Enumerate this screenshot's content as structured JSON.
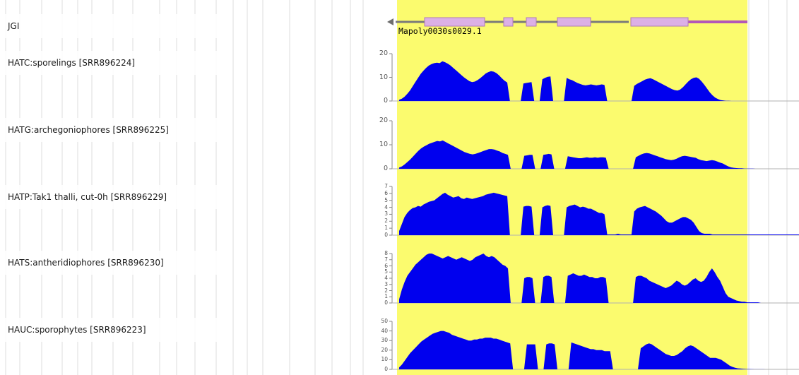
{
  "colors": {
    "highlight": "#fbfb6e",
    "coverage": "#0000ee",
    "exon": "#dcb0e6",
    "exon_border": "#b07ab8",
    "strand_line": "#b357b8",
    "gridline": "#dcdcdc"
  },
  "jgi_track": {
    "label": "JGI",
    "gene": {
      "name": "Mapoly0030s0029.1",
      "strand": "minus",
      "arrow_icon": "left-arrow-icon"
    }
  },
  "tracks": [
    {
      "label": "HATC:sporelings [SRR896224]",
      "ticks": [
        "20",
        "10",
        "0"
      ],
      "max": 20,
      "coverage": [
        0.5,
        1.0,
        1.8,
        3.0,
        4.4,
        6.2,
        8.0,
        9.8,
        11.5,
        12.8,
        14.0,
        15.0,
        15.6,
        16.0,
        16.2,
        16.0,
        16.8,
        16.4,
        15.8,
        15.0,
        14.0,
        13.0,
        12.0,
        11.0,
        10.0,
        9.2,
        8.4,
        8.0,
        8.2,
        8.8,
        9.6,
        10.6,
        11.6,
        12.2,
        12.6,
        12.4,
        11.8,
        10.8,
        9.6,
        8.6,
        7.8,
        0,
        0,
        0,
        0,
        0,
        7.4,
        7.6,
        7.8,
        8.0,
        0,
        0,
        0,
        9.2,
        9.8,
        10.2,
        10.4,
        0,
        0,
        0,
        0,
        0,
        9.8,
        9.2,
        8.8,
        8.2,
        7.6,
        7.2,
        6.8,
        6.6,
        6.8,
        7.0,
        6.8,
        6.6,
        6.8,
        7.0,
        6.8,
        0,
        0,
        0,
        0,
        0,
        0,
        0,
        0,
        0,
        0,
        6.4,
        7.2,
        7.8,
        8.4,
        9.0,
        9.4,
        9.6,
        9.2,
        8.6,
        8.0,
        7.4,
        6.8,
        6.2,
        5.6,
        5.0,
        4.6,
        4.4,
        4.8,
        5.8,
        7.0,
        8.2,
        9.2,
        9.8,
        10.0,
        9.4,
        8.2,
        6.8,
        5.2,
        3.6,
        2.4,
        1.4,
        0.8,
        0.4,
        0.2,
        0.1,
        0.1,
        0.0,
        0.0,
        0.0,
        0.0,
        0.0,
        0.0,
        0.0,
        0.0,
        0.0,
        0.0,
        0.0,
        0.0,
        0.0,
        0.0,
        0.0,
        0.0,
        0.0,
        0.0,
        0.0,
        0.0,
        0.0,
        0.0,
        0.0,
        0.0,
        0.0,
        0.0
      ]
    },
    {
      "label": "HATG:archegoniophores [SRR896225]",
      "ticks": [
        "20",
        "10",
        "0"
      ],
      "max": 20,
      "coverage": [
        0.5,
        1.0,
        1.8,
        2.8,
        3.8,
        5.0,
        6.2,
        7.4,
        8.4,
        9.2,
        9.8,
        10.4,
        10.8,
        11.2,
        11.6,
        11.4,
        11.8,
        11.2,
        10.6,
        10.0,
        9.4,
        8.8,
        8.2,
        7.6,
        7.0,
        6.6,
        6.2,
        6.0,
        6.2,
        6.6,
        7.0,
        7.4,
        7.8,
        8.2,
        8.2,
        8.0,
        7.6,
        7.2,
        6.6,
        6.2,
        5.8,
        0,
        0,
        0,
        0,
        0,
        5.4,
        5.6,
        5.8,
        5.8,
        0,
        0,
        0,
        5.8,
        6.0,
        6.2,
        6.0,
        0,
        0,
        0,
        0,
        0,
        5.2,
        5.0,
        4.8,
        4.6,
        4.4,
        4.4,
        4.6,
        4.8,
        4.6,
        4.6,
        4.8,
        4.6,
        4.8,
        4.8,
        4.6,
        0,
        0,
        0,
        0,
        0,
        0,
        0,
        0,
        0,
        0,
        4.8,
        5.4,
        6.0,
        6.4,
        6.6,
        6.4,
        6.0,
        5.6,
        5.2,
        4.8,
        4.4,
        4.0,
        3.8,
        3.6,
        3.8,
        4.2,
        4.8,
        5.2,
        5.4,
        5.2,
        5.0,
        4.8,
        4.6,
        4.0,
        3.6,
        3.4,
        3.2,
        3.4,
        3.6,
        3.4,
        3.0,
        2.6,
        2.2,
        1.6,
        1.0,
        0.6,
        0.4,
        0.3,
        0.2,
        0.2,
        0.1,
        0.1,
        0.1,
        0.1,
        0.0,
        0.0,
        0.0,
        0.0,
        0.0,
        0.0,
        0.0,
        0.0,
        0.0,
        0.0,
        0.0,
        0.0,
        0.0,
        0.0,
        0.0,
        0.0,
        0.0
      ]
    },
    {
      "label": "HATP:Tak1 thalli, cut-0h [SRR896229]",
      "ticks": [
        "7",
        "6",
        "5",
        "4",
        "3",
        "2",
        "1",
        "0"
      ],
      "max": 7,
      "coverage": [
        0.6,
        1.6,
        2.6,
        3.2,
        3.6,
        3.9,
        4.0,
        4.2,
        4.1,
        4.4,
        4.6,
        4.8,
        4.9,
        5.0,
        5.3,
        5.6,
        5.9,
        6.1,
        5.8,
        5.6,
        5.4,
        5.5,
        5.6,
        5.3,
        5.2,
        5.4,
        5.3,
        5.2,
        5.3,
        5.4,
        5.5,
        5.6,
        5.8,
        5.9,
        6.0,
        6.1,
        6.0,
        5.9,
        5.8,
        5.7,
        5.6,
        0,
        0,
        0,
        0,
        0,
        4.1,
        4.2,
        4.2,
        4.1,
        0,
        0,
        0,
        4.0,
        4.2,
        4.3,
        4.2,
        0,
        0,
        0,
        0,
        0,
        4.0,
        4.2,
        4.3,
        4.4,
        4.2,
        4.0,
        4.1,
        4.0,
        3.8,
        3.8,
        3.6,
        3.4,
        3.2,
        3.2,
        3.0,
        0.1,
        0.1,
        0.1,
        0.1,
        0.2,
        0.1,
        0.1,
        0.1,
        0.1,
        0.1,
        3.4,
        3.8,
        4.0,
        4.1,
        4.2,
        4.0,
        3.8,
        3.6,
        3.4,
        3.1,
        2.8,
        2.4,
        2.0,
        1.8,
        1.8,
        2.0,
        2.2,
        2.4,
        2.6,
        2.6,
        2.4,
        2.2,
        1.8,
        1.2,
        0.6,
        0.3,
        0.2,
        0.2,
        0.2,
        0.1,
        0.1,
        0.1,
        0.1,
        0.1,
        0.1,
        0.1,
        0.1,
        0.1,
        0.1,
        0.1,
        0.1,
        0.1,
        0.1,
        0.1,
        0.1,
        0.1,
        0.1,
        0.1,
        0.1,
        0.1,
        0.1,
        0.1,
        0.1,
        0.1,
        0.1,
        0.1,
        0.1,
        0.1,
        0.1,
        0.1,
        0.1,
        0.1
      ]
    },
    {
      "label": "HATS:antheridiophores [SRR896230]",
      "ticks": [
        "8",
        "7",
        "6",
        "5",
        "4",
        "3",
        "2",
        "1",
        "0"
      ],
      "max": 8,
      "coverage": [
        0.6,
        2.2,
        3.4,
        4.4,
        5.0,
        5.6,
        6.2,
        6.6,
        7.0,
        7.4,
        7.8,
        8.0,
        8.0,
        7.8,
        7.6,
        7.4,
        7.2,
        7.4,
        7.6,
        7.4,
        7.2,
        7.0,
        7.2,
        7.4,
        7.2,
        7.0,
        6.8,
        7.0,
        7.4,
        7.6,
        7.8,
        8.0,
        7.6,
        7.4,
        7.6,
        7.4,
        7.0,
        6.6,
        6.2,
        6.0,
        5.6,
        0,
        0,
        0,
        0,
        0,
        4.0,
        4.2,
        4.2,
        4.0,
        0,
        0,
        0,
        4.2,
        4.4,
        4.4,
        4.2,
        0,
        0,
        0,
        0,
        0,
        4.4,
        4.6,
        4.8,
        4.6,
        4.4,
        4.4,
        4.6,
        4.4,
        4.2,
        4.2,
        4.0,
        4.0,
        4.2,
        4.2,
        4.0,
        0,
        0,
        0,
        0,
        0,
        0,
        0,
        0,
        0,
        0,
        4.2,
        4.4,
        4.4,
        4.2,
        4.0,
        3.6,
        3.4,
        3.2,
        3.0,
        2.8,
        2.6,
        2.4,
        2.6,
        2.8,
        3.2,
        3.6,
        3.4,
        3.0,
        2.8,
        3.0,
        3.4,
        3.8,
        4.0,
        3.6,
        3.4,
        3.6,
        4.2,
        5.0,
        5.6,
        5.0,
        4.2,
        3.6,
        2.6,
        1.6,
        1.0,
        0.8,
        0.6,
        0.4,
        0.3,
        0.2,
        0.2,
        0.1,
        0.1,
        0.1,
        0.1,
        0.1,
        0.0,
        0.0,
        0.0,
        0.0,
        0.0,
        0.0,
        0.0,
        0.0,
        0.0,
        0.0,
        0.0,
        0.0,
        0.0,
        0.0,
        0.0
      ]
    },
    {
      "label": "HAUC:sporophytes [SRR896223]",
      "ticks": [
        "50",
        "40",
        "30",
        "20",
        "10",
        "0"
      ],
      "max": 50,
      "coverage": [
        2,
        5,
        9,
        13,
        17,
        20,
        23,
        26,
        29,
        31,
        33,
        35,
        37,
        38,
        39,
        40,
        40,
        39,
        38,
        36,
        35,
        34,
        33,
        32,
        31,
        30,
        30,
        31,
        31,
        32,
        32,
        33,
        33,
        33,
        32,
        32,
        31,
        30,
        29,
        28,
        27,
        0,
        0,
        0,
        0,
        0,
        26,
        26,
        26,
        26,
        0,
        0,
        0,
        26,
        27,
        27,
        26,
        0,
        0,
        0,
        0,
        0,
        28,
        27,
        26,
        25,
        24,
        23,
        22,
        21,
        21,
        20,
        20,
        20,
        19,
        19,
        19,
        0,
        0,
        0,
        0,
        0,
        0,
        0,
        0,
        0,
        0,
        22,
        24,
        26,
        27,
        26,
        24,
        22,
        20,
        18,
        16,
        15,
        14,
        14,
        15,
        17,
        19,
        22,
        24,
        25,
        24,
        22,
        20,
        18,
        16,
        14,
        12,
        12,
        12,
        11,
        10,
        8,
        6,
        4,
        2.6,
        1.6,
        1.0,
        0.8,
        0.6,
        0.4,
        0.3,
        0.2,
        0.1,
        0.1,
        0.1,
        0.1,
        0.0,
        0.0,
        0.0,
        0.0,
        0.0,
        0.0,
        0.0,
        0.0,
        0.0,
        0.0,
        0.0,
        0.0,
        0.0
      ]
    }
  ]
}
